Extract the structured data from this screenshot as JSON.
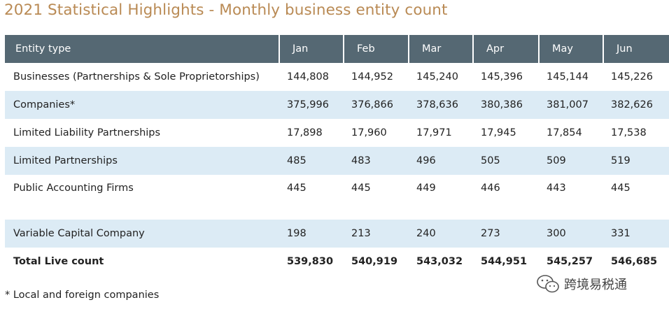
{
  "title": "2021 Statistical Highlights - Monthly business entity count",
  "table": {
    "headers": [
      "Entity type",
      "Jan",
      "Feb",
      "Mar",
      "Apr",
      "May",
      "Jun"
    ],
    "rows": [
      {
        "entity": "Businesses (Partnerships & Sole Proprietorships)",
        "values": [
          "144,808",
          "144,952",
          "145,240",
          "145,396",
          "145,144",
          "145,226"
        ]
      },
      {
        "entity": "Companies*",
        "values": [
          "375,996",
          "376,866",
          "378,636",
          "380,386",
          "381,007",
          "382,626"
        ]
      },
      {
        "entity": "Limited Liability Partnerships",
        "values": [
          "17,898",
          "17,960",
          "17,971",
          "17,945",
          "17,854",
          "17,538"
        ]
      },
      {
        "entity": "Limited Partnerships",
        "values": [
          "485",
          "483",
          "496",
          "505",
          "509",
          "519"
        ]
      },
      {
        "entity": "Public Accounting Firms",
        "values": [
          "445",
          "445",
          "449",
          "446",
          "443",
          "445"
        ]
      },
      {
        "entity": "Variable Capital Company",
        "values": [
          "198",
          "213",
          "240",
          "273",
          "300",
          "331"
        ]
      },
      {
        "entity": "Total Live count",
        "values": [
          "539,830",
          "540,919",
          "543,032",
          "544,951",
          "545,257",
          "546,685"
        ]
      }
    ]
  },
  "footnote": "* Local and foreign companies",
  "watermark": {
    "text": "跨境易税通",
    "icon": "wechat-icon"
  },
  "colors": {
    "title": "#b98a54",
    "header_bg": "#556873",
    "alt_row": "#dcebf5"
  }
}
